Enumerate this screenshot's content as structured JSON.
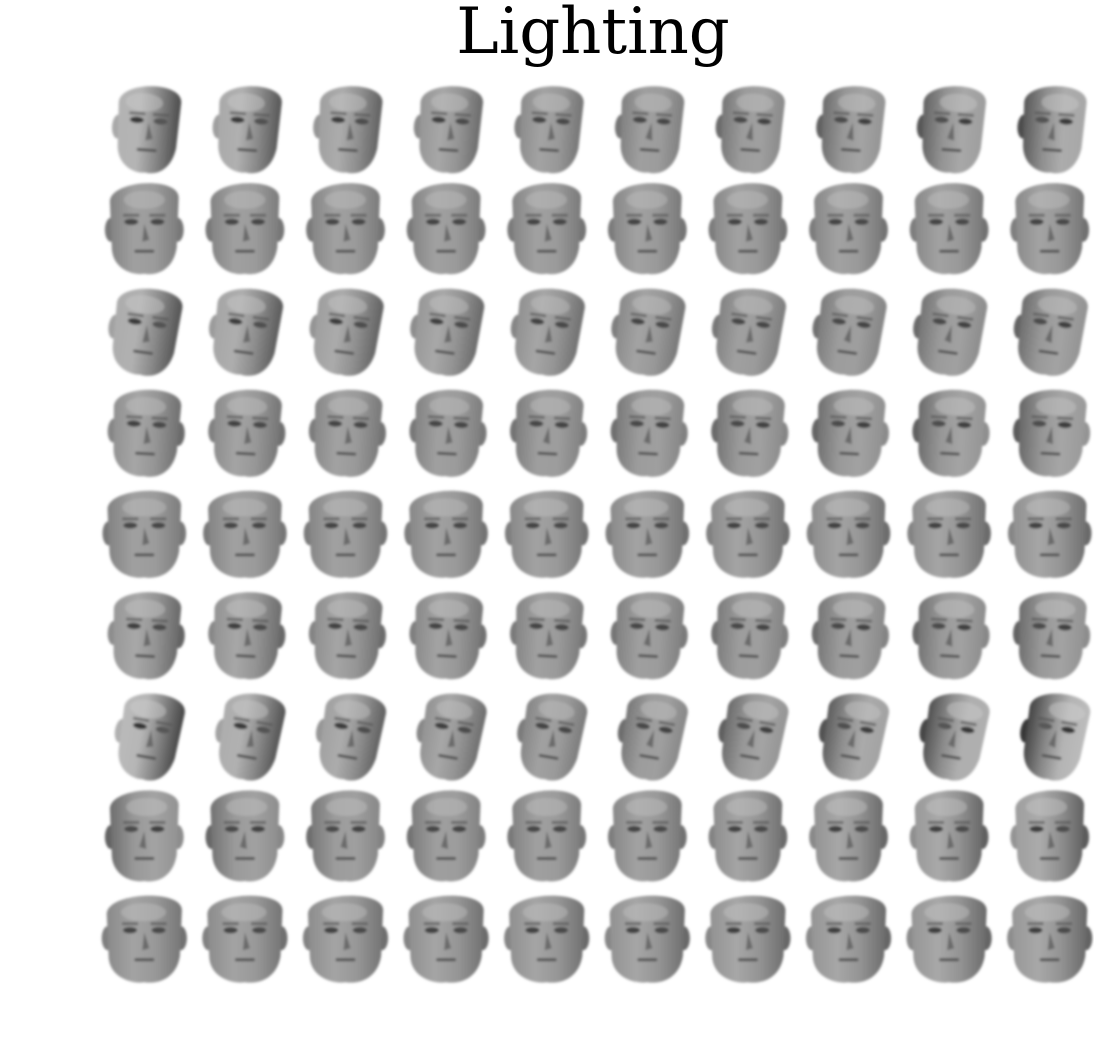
{
  "figure": {
    "title": "Lighting"
  },
  "grid": {
    "rows": 9,
    "cols": 10,
    "row_views": [
      {
        "view": "three-quarter-right",
        "light_from": 0.7,
        "light_to": -0.6
      },
      {
        "view": "frontal-bald",
        "light_from": 0.0,
        "light_to": 0.1
      },
      {
        "view": "three-quarter-right-tilted",
        "light_from": 0.6,
        "light_to": -0.3
      },
      {
        "view": "slight-right",
        "light_from": 0.2,
        "light_to": -0.4
      },
      {
        "view": "frontal-wide",
        "light_from": 0.0,
        "light_to": 0.2
      },
      {
        "view": "slight-right",
        "light_from": 0.3,
        "light_to": -0.3
      },
      {
        "view": "profile-right",
        "light_from": 0.8,
        "light_to": -0.9
      },
      {
        "view": "frontal-bald",
        "light_from": -0.3,
        "light_to": 0.4
      },
      {
        "view": "frontal-wide-lowered",
        "light_from": 0.1,
        "light_to": 0.3
      }
    ]
  }
}
